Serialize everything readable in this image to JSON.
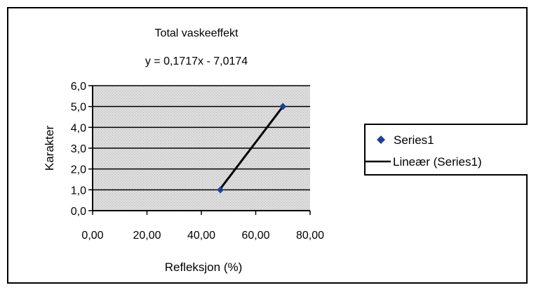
{
  "chart_data": {
    "type": "scatter",
    "title": "Total vaskeeffekt",
    "equation": "y = 0,1717x - 7,0174",
    "xlabel": "Refleksjon (%)",
    "ylabel": "Karakter",
    "xlim": [
      0,
      80
    ],
    "ylim": [
      0,
      6
    ],
    "x_ticks": [
      "0,00",
      "20,00",
      "40,00",
      "60,00",
      "80,00"
    ],
    "y_ticks": [
      "0,0",
      "1,0",
      "2,0",
      "3,0",
      "4,0",
      "5,0",
      "6,0"
    ],
    "grid": true,
    "legend_position": "right",
    "series": [
      {
        "name": "Series1",
        "points": [
          {
            "x": 47.0,
            "y": 1.0
          },
          {
            "x": 70.0,
            "y": 5.0
          }
        ]
      }
    ],
    "trendline": {
      "name": "Lineær (Series1)",
      "type": "linear",
      "slope": 0.1717,
      "intercept": -7.0174
    },
    "colors": {
      "plot_background": "#d9d9d9",
      "marker": "#1f3f99",
      "trendline": "#000000",
      "gridline": "#000000"
    }
  }
}
